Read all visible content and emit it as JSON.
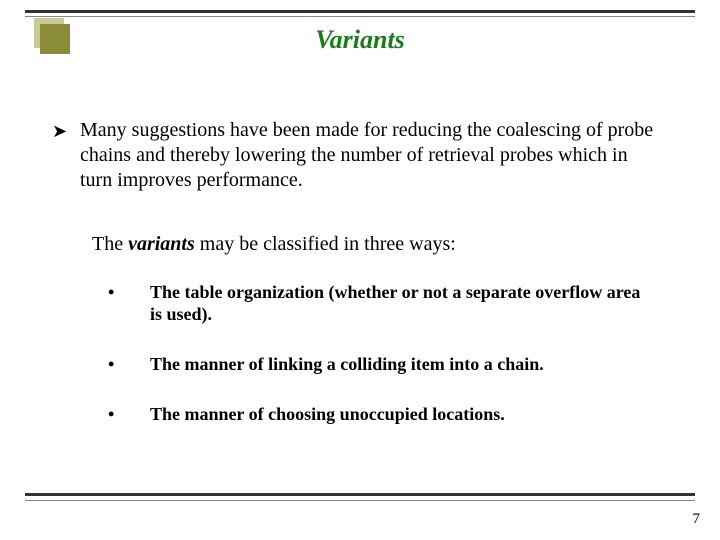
{
  "colors": {
    "rule_dark": "#333333",
    "rule_light": "#888888",
    "corner_fill": "#8a8c3a",
    "corner_shadow": "#c9ca96",
    "title_color": "#1a7d1a",
    "text_color": "#000000",
    "background": "#ffffff"
  },
  "title": {
    "text": "Variants",
    "fontsize": 26,
    "bold": true,
    "italic": true
  },
  "lead": {
    "bullet_glyph": "➤",
    "text": "Many suggestions have been made for reducing the coalescing of probe chains and thereby lowering the number of retrieval probes which in turn improves performance.",
    "fontsize": 20
  },
  "intro": {
    "prefix": "The  ",
    "keyword": "variants",
    "suffix": " may be classified in three ways:",
    "fontsize": 20
  },
  "bullets": {
    "glyph": "•",
    "fontsize": 18,
    "bold": true,
    "items": [
      "The table organization (whether or not a separate overflow area is used).",
      "The manner of linking a colliding item into a chain.",
      "The manner of choosing unoccupied locations."
    ]
  },
  "page_number": "7"
}
